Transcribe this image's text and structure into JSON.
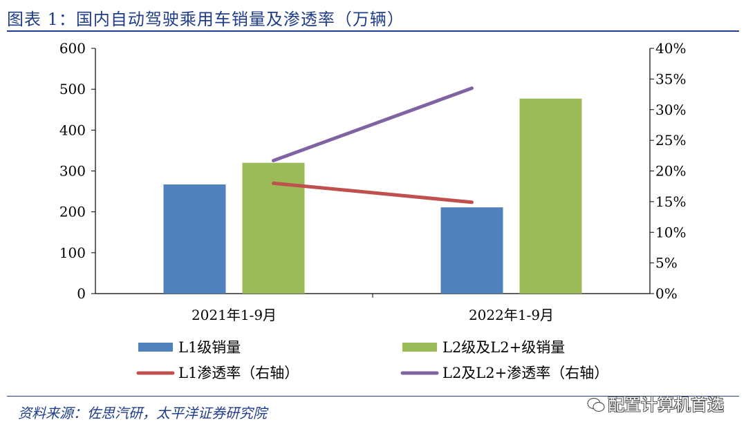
{
  "title": "图表 1：国内自动驾驶乘用车销量及渗透率（万辆）",
  "source": "资料来源：佐思汽研，太平洋证券研究院",
  "watermark": "配置计算机首选",
  "chart_data": {
    "type": "bar",
    "categories": [
      "2021年1-9月",
      "2022年1-9月"
    ],
    "series": [
      {
        "name": "L1级销量",
        "type": "bar",
        "axis": "left",
        "color": "#4f81bd",
        "values": [
          267,
          211
        ]
      },
      {
        "name": "L2级及L2+级销量",
        "type": "bar",
        "axis": "left",
        "color": "#9bbb59",
        "values": [
          320,
          477
        ]
      },
      {
        "name": "L1渗透率（右轴）",
        "type": "line",
        "axis": "right",
        "color": "#c0504d",
        "values": [
          0.18,
          0.149
        ]
      },
      {
        "name": "L2及L2+渗透率（右轴）",
        "type": "line",
        "axis": "right",
        "color": "#8064a2",
        "values": [
          0.217,
          0.335
        ]
      }
    ],
    "y_left": {
      "min": 0,
      "max": 600,
      "ticks": [
        "0",
        "100",
        "200",
        "300",
        "400",
        "500",
        "600"
      ]
    },
    "y_right": {
      "min": 0,
      "max": 0.4,
      "ticks": [
        "0%",
        "5%",
        "10%",
        "15%",
        "20%",
        "25%",
        "30%",
        "35%",
        "40%"
      ]
    },
    "grid": false,
    "legend_position": "bottom"
  }
}
